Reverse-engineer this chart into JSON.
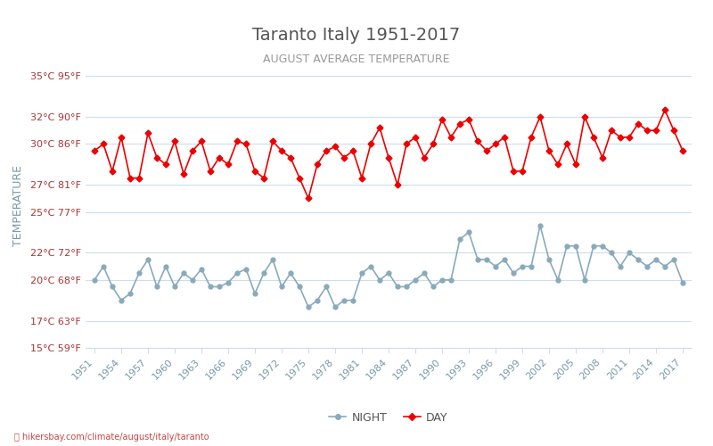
{
  "title": "Taranto Italy 1951-2017",
  "subtitle": "AUGUST AVERAGE TEMPERATURE",
  "ylabel": "TEMPERATURE",
  "footer": "hikersbay.com/climate/august/italy/taranto",
  "background_color": "#ffffff",
  "plot_background": "#ffffff",
  "grid_color": "#ccddee",
  "title_color": "#555555",
  "subtitle_color": "#999999",
  "ylabel_color": "#7799aa",
  "tick_color": "#aa3333",
  "xtick_color": "#7799aa",
  "years": [
    1951,
    1952,
    1953,
    1954,
    1955,
    1956,
    1957,
    1958,
    1959,
    1960,
    1961,
    1962,
    1963,
    1964,
    1965,
    1966,
    1967,
    1968,
    1969,
    1970,
    1971,
    1972,
    1973,
    1974,
    1975,
    1976,
    1977,
    1978,
    1979,
    1980,
    1981,
    1982,
    1983,
    1984,
    1985,
    1986,
    1987,
    1988,
    1989,
    1990,
    1991,
    1992,
    1993,
    1994,
    1995,
    1996,
    1997,
    1998,
    1999,
    2000,
    2001,
    2002,
    2003,
    2004,
    2005,
    2006,
    2007,
    2008,
    2009,
    2010,
    2011,
    2012,
    2013,
    2014,
    2015,
    2016,
    2017
  ],
  "day_temps": [
    29.5,
    30.0,
    28.0,
    30.5,
    27.5,
    27.5,
    30.8,
    29.0,
    28.5,
    30.2,
    27.8,
    29.5,
    30.2,
    28.0,
    29.0,
    28.5,
    30.2,
    30.0,
    28.0,
    27.5,
    30.2,
    29.5,
    29.0,
    27.5,
    26.0,
    28.5,
    29.5,
    29.8,
    29.0,
    29.5,
    27.5,
    30.0,
    31.2,
    29.0,
    27.0,
    30.0,
    30.5,
    29.0,
    30.0,
    31.8,
    30.5,
    31.5,
    31.8,
    30.2,
    29.5,
    30.0,
    30.5,
    28.0,
    28.0,
    30.5,
    32.0,
    29.5,
    28.5,
    30.0,
    28.5,
    32.0,
    30.5,
    29.0,
    31.0,
    30.5,
    30.5,
    31.5,
    31.0,
    31.0,
    32.5,
    31.0,
    29.5
  ],
  "night_temps": [
    20.0,
    21.0,
    19.5,
    18.5,
    19.0,
    20.5,
    21.5,
    19.5,
    21.0,
    19.5,
    20.5,
    20.0,
    20.8,
    19.5,
    19.5,
    19.8,
    20.5,
    20.8,
    19.0,
    20.5,
    21.5,
    19.5,
    20.5,
    19.5,
    18.0,
    18.5,
    19.5,
    18.0,
    18.5,
    18.5,
    20.5,
    21.0,
    20.0,
    20.5,
    19.5,
    19.5,
    20.0,
    20.5,
    19.5,
    20.0,
    20.0,
    23.0,
    23.5,
    21.5,
    21.5,
    21.0,
    21.5,
    20.5,
    21.0,
    21.0,
    24.0,
    21.5,
    20.0,
    22.5,
    22.5,
    20.0,
    22.5,
    22.5,
    22.0,
    21.0,
    22.0,
    21.5,
    21.0,
    21.5,
    21.0,
    21.5,
    19.8
  ],
  "day_color": "#ee0000",
  "night_color": "#88aabb",
  "day_marker": "D",
  "night_marker": "o",
  "ylim_min": 15,
  "ylim_max": 36,
  "yticks_celsius": [
    15,
    17,
    20,
    22,
    25,
    27,
    30,
    32,
    35
  ],
  "yticks_fahrenheit": [
    59,
    63,
    68,
    72,
    77,
    81,
    86,
    90,
    95
  ],
  "legend_night": "NIGHT",
  "legend_day": "DAY",
  "legend_color": "#555555"
}
